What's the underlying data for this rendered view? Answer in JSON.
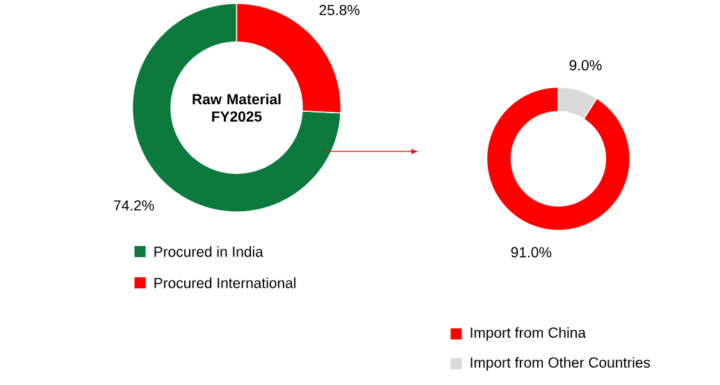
{
  "chart_data": [
    {
      "type": "donut",
      "title": "Raw Material FY2025",
      "categories": [
        "Procured in India",
        "Procured International"
      ],
      "values": [
        74.2,
        25.8
      ],
      "colors": [
        "#0b7a3c",
        "#ff0000"
      ],
      "value_labels": [
        "74.2%",
        "25.8%"
      ],
      "legend": "bottom"
    },
    {
      "type": "donut",
      "categories": [
        "Import from China",
        "Import from Other Countries"
      ],
      "values": [
        91.0,
        9.0
      ],
      "colors": [
        "#ff0000",
        "#d9d9d9"
      ],
      "value_labels": [
        "91.0%",
        "9.0%"
      ],
      "legend": "bottom"
    }
  ]
}
